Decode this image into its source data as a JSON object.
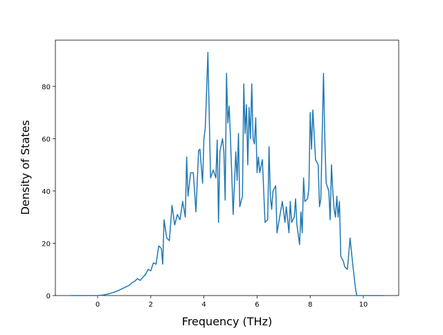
{
  "chart_data": {
    "type": "line",
    "xlabel": "Frequency (THz)",
    "ylabel": "Density of States",
    "x": [
      -1,
      0,
      0.2,
      0.4,
      0.6,
      0.8,
      1.0,
      1.2,
      1.3,
      1.4,
      1.5,
      1.6,
      1.7,
      1.8,
      1.9,
      2.0,
      2.1,
      2.2,
      2.3,
      2.4,
      2.45,
      2.5,
      2.6,
      2.7,
      2.8,
      2.9,
      3.0,
      3.1,
      3.2,
      3.3,
      3.35,
      3.4,
      3.5,
      3.6,
      3.7,
      3.8,
      3.85,
      3.95,
      4.0,
      4.05,
      4.1,
      4.15,
      4.25,
      4.35,
      4.45,
      4.5,
      4.55,
      4.6,
      4.7,
      4.75,
      4.8,
      4.85,
      4.9,
      4.95,
      5.0,
      5.1,
      5.2,
      5.25,
      5.3,
      5.35,
      5.45,
      5.5,
      5.55,
      5.6,
      5.65,
      5.7,
      5.75,
      5.8,
      5.85,
      5.9,
      5.95,
      6.0,
      6.05,
      6.1,
      6.2,
      6.3,
      6.4,
      6.45,
      6.5,
      6.55,
      6.6,
      6.7,
      6.75,
      6.85,
      6.95,
      7.05,
      7.1,
      7.2,
      7.25,
      7.3,
      7.4,
      7.45,
      7.5,
      7.6,
      7.65,
      7.7,
      7.75,
      7.8,
      7.9,
      7.95,
      8.0,
      8.05,
      8.1,
      8.2,
      8.3,
      8.35,
      8.4,
      8.5,
      8.55,
      8.6,
      8.7,
      8.75,
      8.8,
      8.85,
      8.9,
      8.95,
      9.0,
      9.05,
      9.1,
      9.15,
      9.25,
      9.3,
      9.4,
      9.5,
      9.55,
      9.6,
      9.7,
      9.75,
      10.75
    ],
    "series": [
      {
        "color": "#1f77b4",
        "values": [
          0,
          0,
          0.2,
          0.6,
          1.2,
          2.0,
          3.0,
          4.0,
          5.0,
          5.5,
          6.5,
          5.8,
          7,
          8,
          10,
          9.5,
          12.5,
          12,
          19,
          18,
          12,
          29,
          22,
          21,
          34.5,
          27,
          31,
          29,
          36,
          30,
          53,
          38,
          47,
          47,
          32,
          55.5,
          56,
          43,
          60,
          64,
          78,
          93,
          45,
          48,
          45,
          59.5,
          28,
          55,
          60,
          55,
          36.5,
          85,
          66,
          72.5,
          60,
          31,
          55,
          44,
          62,
          34,
          38,
          81,
          62,
          73,
          50,
          72,
          60,
          81,
          60,
          58,
          68,
          47,
          53,
          47,
          52,
          28,
          29,
          57,
          38,
          33,
          40,
          42,
          24,
          30,
          36,
          28,
          34,
          24,
          36,
          28,
          30,
          37,
          27,
          19.5,
          32,
          24,
          45,
          36,
          37,
          41,
          70,
          56,
          71,
          52,
          50,
          34,
          37,
          85,
          60,
          43,
          40,
          29,
          50,
          40,
          33,
          30,
          38,
          30,
          36,
          15,
          13,
          11,
          10,
          22,
          17,
          12,
          3,
          0,
          0
        ]
      }
    ],
    "xlim": [
      -1.59,
      11.33
    ],
    "ylim": [
      0,
      97.7
    ],
    "xticks": [
      0,
      2,
      4,
      6,
      8,
      10
    ],
    "yticks": [
      0,
      20,
      40,
      60,
      80
    ]
  }
}
